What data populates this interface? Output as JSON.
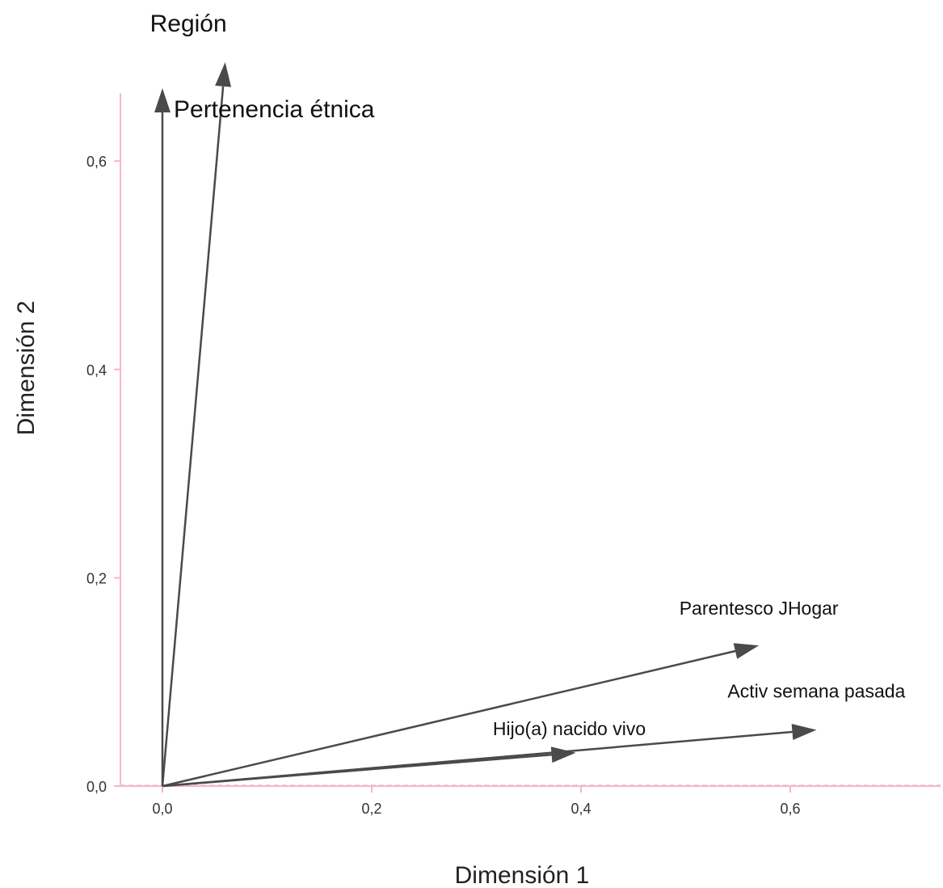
{
  "chart_data": {
    "type": "scatter",
    "title": "",
    "xlabel": "Dimensión 1",
    "ylabel": "Dimensión 2",
    "xlim": [
      -0.042,
      0.745
    ],
    "ylim": [
      0.0,
      0.665
    ],
    "x_ticks": [
      "0,0",
      "0,2",
      "0,4",
      "0,6"
    ],
    "y_ticks": [
      "0,0",
      "0,2",
      "0,4",
      "0,6"
    ],
    "vectors": [
      {
        "name": "Región",
        "x": 0.06,
        "y": 0.695
      },
      {
        "name": "Pertenencia étnica",
        "x": 0.0,
        "y": 0.67
      },
      {
        "name": "Parentesco JHogar",
        "x": 0.57,
        "y": 0.135
      },
      {
        "name": "Activ semana pasada",
        "x": 0.625,
        "y": 0.054
      },
      {
        "name": "Hijo(a) nacido vivo",
        "x": 0.395,
        "y": 0.032
      }
    ],
    "grid": false,
    "colors": {
      "axis": "#f4b6cc",
      "vector": "#4a4a4a"
    }
  }
}
